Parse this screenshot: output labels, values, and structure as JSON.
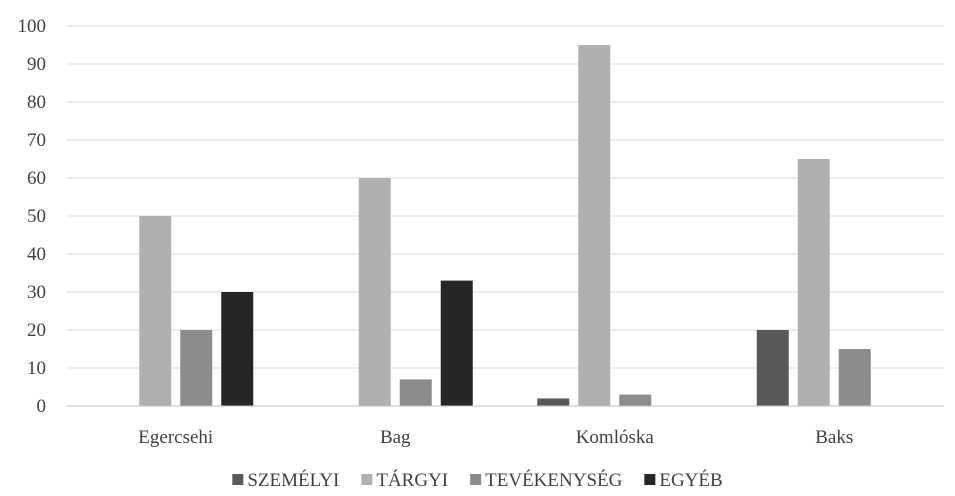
{
  "chart_data": {
    "type": "bar",
    "categories": [
      "Egercsehi",
      "Bag",
      "Komlóska",
      "Baks"
    ],
    "series": [
      {
        "name": "SZEMÉLYI",
        "color": "#595959",
        "values": [
          0,
          0,
          2,
          20
        ]
      },
      {
        "name": "TÁRGYI",
        "color": "#b0b0b0",
        "values": [
          50,
          60,
          95,
          65
        ]
      },
      {
        "name": "TEVÉKENYSÉG",
        "color": "#8c8c8c",
        "values": [
          20,
          7,
          3,
          15
        ]
      },
      {
        "name": "EGYÉB",
        "color": "#262626",
        "values": [
          30,
          33,
          0,
          0
        ]
      }
    ],
    "title": "",
    "xlabel": "",
    "ylabel": "",
    "ylim": [
      0,
      100
    ],
    "yticks": [
      0,
      10,
      20,
      30,
      40,
      50,
      60,
      70,
      80,
      90,
      100
    ],
    "grid": true,
    "legend_position": "bottom"
  }
}
